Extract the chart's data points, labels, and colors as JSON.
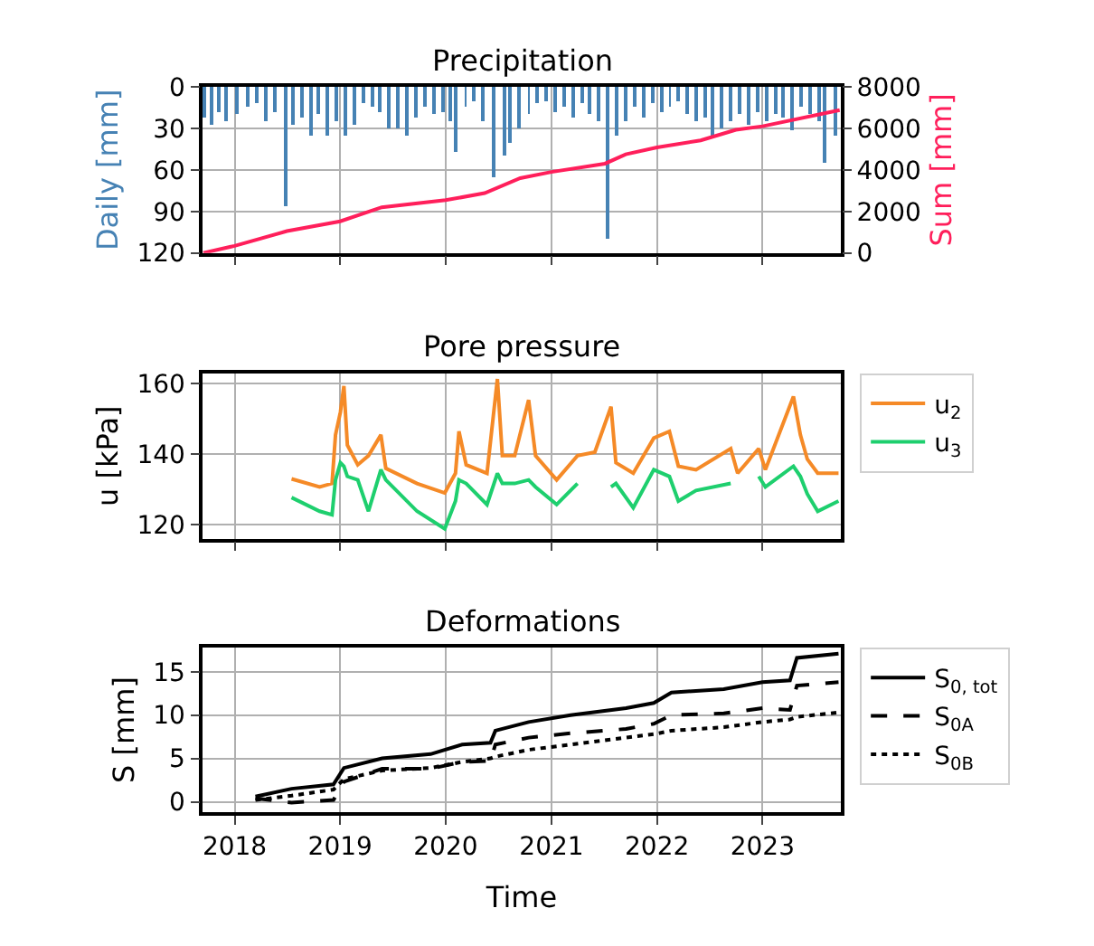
{
  "chart_data": [
    {
      "type": "bar",
      "title": "Precipitation",
      "ylabel": "Daily [mm]",
      "y2label": "Sum [mm]",
      "xlim": [
        "2017-09-12",
        "2023-09-29"
      ],
      "xticks": [
        {
          "value": "2018-01-01",
          "label": null
        },
        {
          "value": "2019-01-01",
          "label": null
        },
        {
          "value": "2020-01-01",
          "label": null
        },
        {
          "value": "2021-01-01",
          "label": null
        },
        {
          "value": "2022-01-01",
          "label": null
        },
        {
          "value": "2023-01-01",
          "label": null
        }
      ],
      "ylim": [
        120,
        0
      ],
      "yticks": [
        0,
        30,
        60,
        90,
        120
      ],
      "y2lim": [
        0,
        8000
      ],
      "y2ticks": [
        0,
        2000,
        4000,
        6000,
        8000
      ],
      "grid": true,
      "tick_labels": "y",
      "series": [
        {
          "type": "bar",
          "color": "#4682b4",
          "x": [
            "2017-09-20",
            "2017-10-15",
            "2017-11-10",
            "2017-12-05",
            "2018-01-10",
            "2018-02-15",
            "2018-03-20",
            "2018-04-20",
            "2018-05-20",
            "2018-06-25",
            "2018-07-20",
            "2018-08-20",
            "2018-09-20",
            "2018-10-20",
            "2018-11-20",
            "2018-12-20",
            "2019-01-20",
            "2019-02-20",
            "2019-03-20",
            "2019-04-20",
            "2019-05-20",
            "2019-06-20",
            "2019-07-20",
            "2019-08-20",
            "2019-09-20",
            "2019-10-20",
            "2019-11-20",
            "2019-12-20",
            "2020-01-15",
            "2020-02-03",
            "2020-03-10",
            "2020-04-10",
            "2020-05-10",
            "2020-06-17",
            "2020-07-20",
            "2020-08-10",
            "2020-09-10",
            "2020-10-15",
            "2020-11-15",
            "2020-12-15",
            "2021-01-15",
            "2021-02-15",
            "2021-03-15",
            "2021-04-15",
            "2021-05-15",
            "2021-06-15",
            "2021-07-16",
            "2021-08-15",
            "2021-09-15",
            "2021-10-15",
            "2021-11-15",
            "2021-12-15",
            "2022-01-15",
            "2022-02-15",
            "2022-03-15",
            "2022-04-15",
            "2022-05-15",
            "2022-06-15",
            "2022-07-10",
            "2022-08-15",
            "2022-09-15",
            "2022-10-15",
            "2022-11-15",
            "2022-12-15",
            "2023-01-15",
            "2023-02-15",
            "2023-03-15",
            "2023-04-15",
            "2023-05-15",
            "2023-06-15",
            "2023-07-15",
            "2023-08-05",
            "2023-09-10"
          ],
          "values": [
            22,
            28,
            18,
            25,
            20,
            15,
            12,
            25,
            18,
            86,
            28,
            22,
            35,
            20,
            35,
            25,
            35,
            28,
            12,
            15,
            18,
            30,
            30,
            35,
            22,
            15,
            20,
            18,
            25,
            47,
            15,
            10,
            25,
            65,
            50,
            40,
            30,
            20,
            12,
            10,
            18,
            15,
            22,
            12,
            20,
            25,
            110,
            35,
            25,
            15,
            22,
            12,
            18,
            15,
            10,
            20,
            25,
            22,
            35,
            30,
            25,
            20,
            28,
            18,
            25,
            20,
            22,
            32,
            15,
            20,
            25,
            55,
            35
          ]
        },
        {
          "type": "line",
          "axis": "y2",
          "color": "#ff1f5b",
          "x": [
            "2017-09-15",
            "2018-01-01",
            "2018-07-01",
            "2019-01-01",
            "2019-05-25",
            "2020-01-01",
            "2020-05-15",
            "2020-09-15",
            "2021-01-01",
            "2021-07-05",
            "2021-09-15",
            "2022-01-01",
            "2022-06-01",
            "2022-10-01",
            "2023-01-01",
            "2023-09-25"
          ],
          "values": [
            0,
            340,
            1050,
            1520,
            2200,
            2540,
            2880,
            3600,
            3900,
            4300,
            4750,
            5080,
            5420,
            5930,
            6100,
            6880
          ]
        }
      ]
    },
    {
      "type": "line",
      "title": "Pore pressure",
      "ylabel": "u [kPa]",
      "xlim": [
        "2017-09-12",
        "2023-09-29"
      ],
      "xticks": [
        {
          "value": "2018-01-01",
          "label": null
        },
        {
          "value": "2019-01-01",
          "label": null
        },
        {
          "value": "2020-01-01",
          "label": null
        },
        {
          "value": "2021-01-01",
          "label": null
        },
        {
          "value": "2022-01-01",
          "label": null
        },
        {
          "value": "2023-01-01",
          "label": null
        }
      ],
      "ylim": [
        116,
        163
      ],
      "yticks": [
        120,
        140,
        160
      ],
      "grid": true,
      "tick_labels": "y",
      "legend": "right",
      "x": [
        "2018-07-17",
        "2018-10-22",
        "2018-12-04",
        "2018-12-16",
        "2019-01-02",
        "2019-01-14",
        "2019-01-26",
        "2019-03-03",
        "2019-04-09",
        "2019-05-22",
        "2019-06-08",
        "2019-09-24",
        "2019-12-29",
        "2020-02-04",
        "2020-02-16",
        "2020-03-12",
        "2020-05-23",
        "2020-06-28",
        "2020-07-15",
        "2020-08-27",
        "2020-10-14",
        "2020-11-07",
        "2021-01-19",
        "2021-04-01",
        "2021-05-31",
        "2021-07-26",
        "2021-08-12",
        "2021-10-11",
        "2021-12-21",
        "2022-02-13",
        "2022-03-16",
        "2022-05-16",
        "2022-09-13",
        "2022-10-07",
        "2022-12-19",
        "2023-01-11",
        "2023-04-18",
        "2023-05-12",
        "2023-06-05",
        "2023-07-11",
        "2023-09-21"
      ],
      "series": [
        {
          "name": "u$_{2}$",
          "color": "#f58a27",
          "values": [
            133,
            130.7,
            131.7,
            145.5,
            152,
            159.4,
            142.6,
            137,
            139.6,
            145.5,
            136,
            131.7,
            129,
            134.6,
            146.5,
            137,
            134.6,
            161.4,
            139.6,
            139.6,
            155.4,
            139.6,
            132.7,
            139.6,
            140.6,
            153.5,
            137.6,
            134.6,
            144.6,
            146.5,
            136.6,
            135.6,
            141.6,
            134.6,
            141.6,
            135.6,
            156.4,
            145.5,
            138.6,
            134.6,
            134.6
          ]
        },
        {
          "name": "u$_{3}$",
          "color": "#1ecf6e",
          "values": [
            127.7,
            123.8,
            122.8,
            132.7,
            137.6,
            136.6,
            133.7,
            132.7,
            123.8,
            135.6,
            132.7,
            123.8,
            118.8,
            126.7,
            132.7,
            131.7,
            125.7,
            134.6,
            131.7,
            131.7,
            132.7,
            130.7,
            125.7,
            131.7,
            null,
            130.7,
            131.7,
            124.8,
            135.6,
            133.7,
            126.7,
            129.7,
            131.7,
            null,
            133.7,
            130.7,
            136.6,
            133.7,
            128.7,
            123.8,
            126.7
          ]
        }
      ]
    },
    {
      "type": "line",
      "title": "Deformations",
      "xlabel": "Time",
      "ylabel": "S [mm]",
      "xlim": [
        "2017-09-12",
        "2023-09-29"
      ],
      "xticks": [
        {
          "value": "2018-01-01",
          "label": "2018"
        },
        {
          "value": "2019-01-01",
          "label": "2019"
        },
        {
          "value": "2020-01-01",
          "label": "2020"
        },
        {
          "value": "2021-01-01",
          "label": "2021"
        },
        {
          "value": "2022-01-01",
          "label": "2022"
        },
        {
          "value": "2023-01-01",
          "label": "2023"
        }
      ],
      "ylim": [
        -1.2,
        17.8
      ],
      "yticks": [
        0,
        5,
        10,
        15
      ],
      "grid": true,
      "legend": "right",
      "x": [
        "2018-03-14",
        "2018-07-17",
        "2018-12-09",
        "2019-01-14",
        "2019-05-26",
        "2019-11-10",
        "2020-02-27",
        "2020-06-04",
        "2020-06-21",
        "2020-10-14",
        "2021-03-08",
        "2021-09-16",
        "2021-12-21",
        "2022-02-20",
        "2022-08-20",
        "2023-01-01",
        "2023-04-06",
        "2023-04-30",
        "2023-09-21"
      ],
      "series": [
        {
          "name": "S$_{0, tot}$",
          "color": "#000000",
          "line_style": "solid",
          "values": [
            0.6,
            1.5,
            2.0,
            3.9,
            5.0,
            5.5,
            6.6,
            6.8,
            8.2,
            9.2,
            10.0,
            10.8,
            11.4,
            12.6,
            13.0,
            13.8,
            14.0,
            16.6,
            17.1
          ]
        },
        {
          "name": "S$_{0A}$",
          "color": "#000000",
          "line_style": "dashed",
          "values": [
            0.4,
            -0.1,
            0.2,
            2.3,
            3.8,
            3.8,
            4.6,
            4.7,
            6.6,
            7.4,
            7.9,
            8.4,
            9.0,
            10.0,
            10.2,
            10.8,
            10.6,
            13.4,
            13.8
          ]
        },
        {
          "name": "S$_{0B}$",
          "color": "#000000",
          "line_style": "dotted",
          "values": [
            0.2,
            0.7,
            1.4,
            2.6,
            3.6,
            3.9,
            4.6,
            5.0,
            5.2,
            6.0,
            6.6,
            7.4,
            7.8,
            8.2,
            8.6,
            9.2,
            9.5,
            9.8,
            10.3
          ]
        }
      ]
    }
  ]
}
